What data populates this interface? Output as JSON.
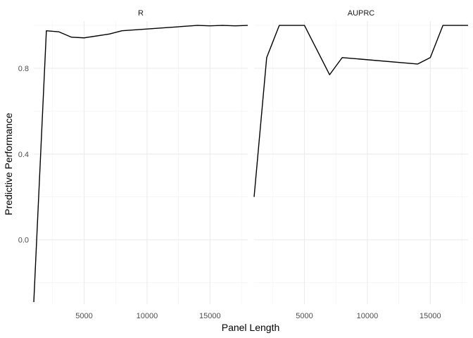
{
  "chart_data": {
    "type": "line",
    "facet_layout": "1 row, 2 columns, shared y axis",
    "xlabel": "Panel Length",
    "ylabel": "Predictive Performance",
    "xlim": [
      1000,
      18000
    ],
    "ylim": [
      -0.3,
      1.02
    ],
    "x_ticks": [
      5000,
      10000,
      15000
    ],
    "y_ticks": [
      0.0,
      0.4,
      0.8
    ],
    "x_tick_labels": [
      "5000",
      "10000",
      "15000"
    ],
    "y_tick_labels": [
      "0.0",
      "0.4",
      "0.8"
    ],
    "grid": true,
    "legend": "none",
    "line_color": "#000000",
    "panels": [
      {
        "title": "R",
        "x": [
          1000,
          2000,
          3000,
          4000,
          5000,
          7000,
          8000,
          14000,
          15000,
          16000,
          17000,
          18000
        ],
        "y": [
          -0.29,
          0.975,
          0.97,
          0.945,
          0.942,
          0.96,
          0.975,
          1.0,
          0.998,
          1.0,
          0.998,
          1.0
        ]
      },
      {
        "title": "AUPRC",
        "x": [
          1000,
          2000,
          3000,
          5000,
          7000,
          8000,
          14000,
          15000,
          16000,
          18000
        ],
        "y": [
          0.2,
          0.85,
          1.0,
          1.0,
          0.77,
          0.85,
          0.82,
          0.85,
          1.0,
          1.0
        ]
      }
    ]
  }
}
